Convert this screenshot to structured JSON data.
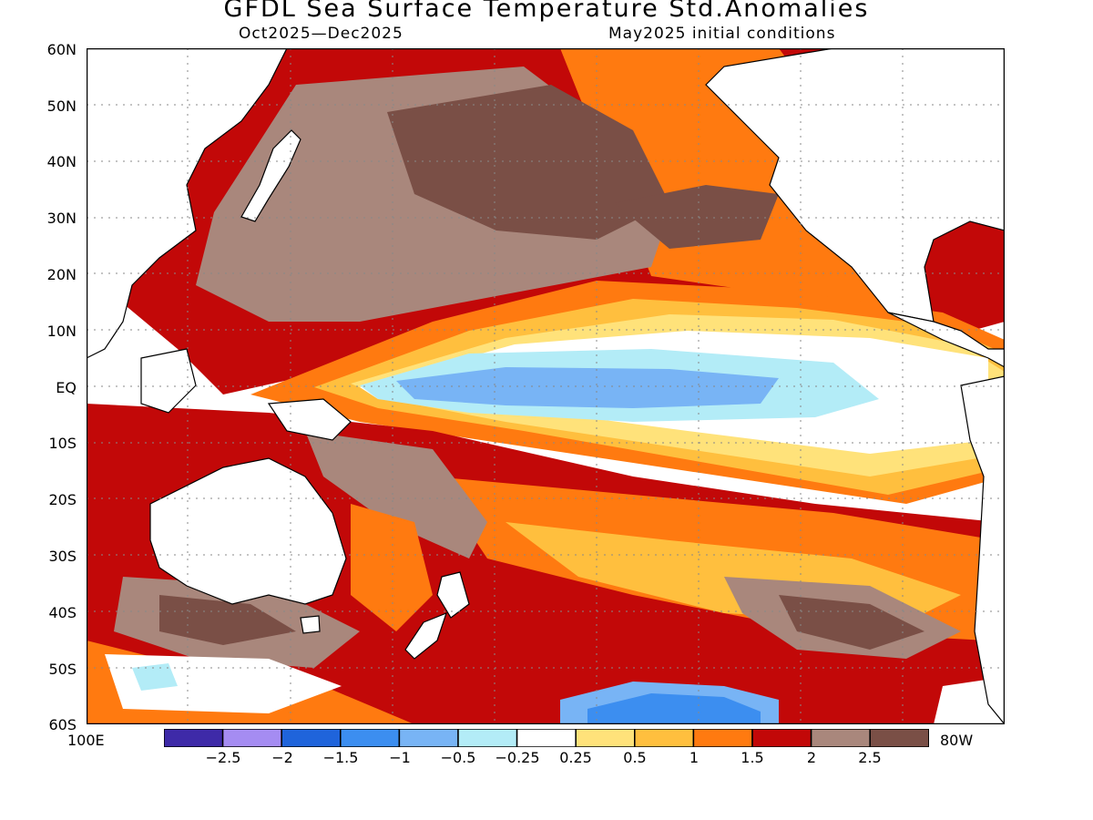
{
  "title": "GFDL Sea Surface Temperature Std.Anomalies",
  "subtitle_left": "Oct2025—Dec2025",
  "subtitle_right": "May2025 initial conditions",
  "axes": {
    "lat_labels": [
      "60N",
      "50N",
      "40N",
      "30N",
      "20N",
      "10N",
      "EQ",
      "10S",
      "20S",
      "30S",
      "40S",
      "50S",
      "60S"
    ],
    "lon_left": "100E",
    "lon_right": "80W",
    "grid": "dotted"
  },
  "colorbar": {
    "tick_labels": [
      "−2.5",
      "−2",
      "−1.5",
      "−1",
      "−0.5",
      "−0.25",
      "0.25",
      "0.5",
      "1",
      "1.5",
      "2",
      "2.5"
    ],
    "colors": [
      "#3e2aa8",
      "#a58cf2",
      "#1f64db",
      "#3c8ef0",
      "#78b4f5",
      "#b3ecf7",
      "#ffffff",
      "#ffe27a",
      "#ffbf3e",
      "#ff7a10",
      "#c20808",
      "#a9877c",
      "#7a4f46"
    ]
  }
}
